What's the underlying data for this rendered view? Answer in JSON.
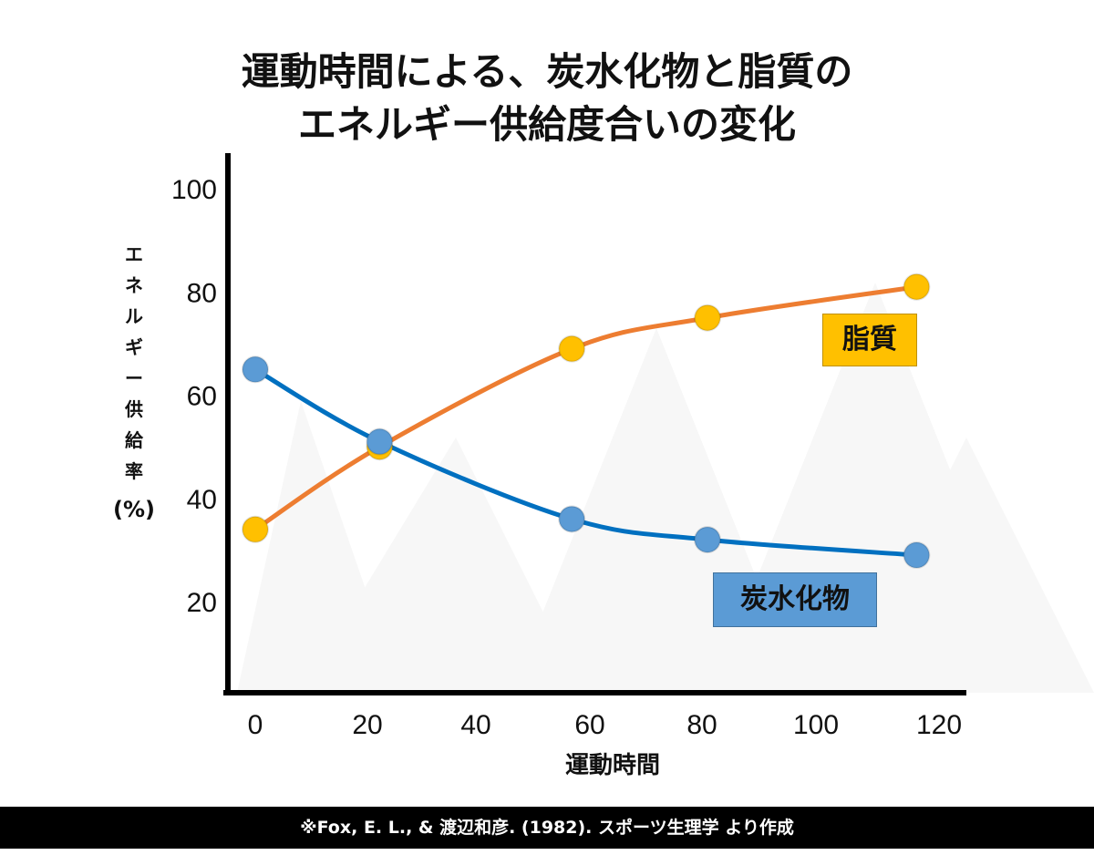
{
  "title": {
    "line1": "運動時間による、炭水化物と脂質の",
    "line2": "エネルギー供給度合いの変化"
  },
  "footer": "※Fox, E. L., & 渡辺和彦. (1982). スポーツ生理学 より作成",
  "chart_data": {
    "type": "line",
    "xlabel": "運動時間",
    "ylabel": "エネルギー供給率",
    "ylabel_unit": "(%)",
    "x_ticks": [
      "0",
      "20",
      "40",
      "60",
      "80",
      "100",
      "120"
    ],
    "y_ticks": [
      "20",
      "40",
      "60",
      "80",
      "100"
    ],
    "xlim": [
      0,
      125
    ],
    "ylim": [
      0,
      105
    ],
    "grid": false,
    "series": [
      {
        "name": "脂質",
        "color": "#ED7D31",
        "marker_color": "#FFC000",
        "label_bg": "#FFC000",
        "x": [
          0,
          22,
          56,
          80,
          117
        ],
        "y": [
          34,
          50,
          69,
          75,
          81
        ]
      },
      {
        "name": "炭水化物",
        "color": "#0070C0",
        "marker_color": "#5B9BD5",
        "label_bg": "#5B9BD5",
        "x": [
          0,
          22,
          56,
          80,
          117
        ],
        "y": [
          65,
          51,
          36,
          32,
          29
        ]
      }
    ]
  }
}
